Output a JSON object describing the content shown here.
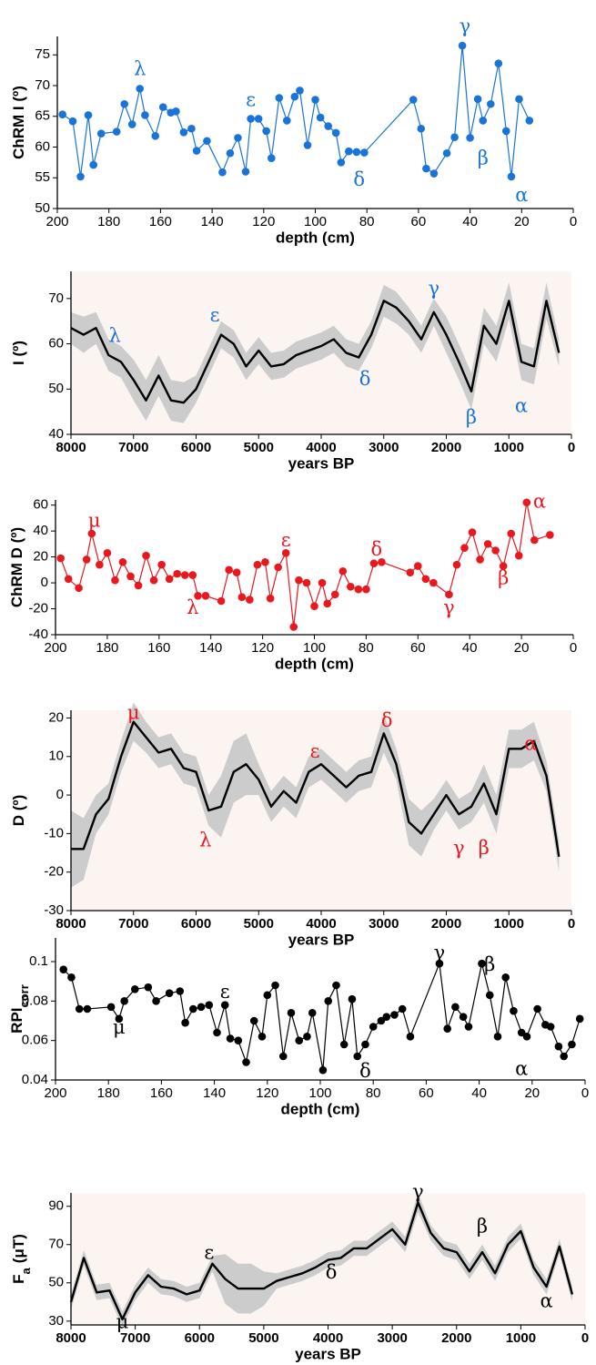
{
  "chart_data": [
    {
      "type": "line",
      "markers": true,
      "color": "#1a73d9",
      "annotation_color": "#1a73d9",
      "ylabel": [
        "ChRM  I (º)"
      ],
      "ylabel_sub": [
        false
      ],
      "xlabel": "depth (cm)",
      "xlim": [
        200,
        0
      ],
      "ylim": [
        50,
        78
      ],
      "xticks": [
        200,
        180,
        160,
        140,
        120,
        100,
        80,
        60,
        40,
        20,
        0
      ],
      "yticks": [
        50,
        55,
        60,
        65,
        70,
        75
      ],
      "x": [
        198,
        194,
        191,
        188,
        186,
        183,
        177,
        174,
        171,
        168,
        166,
        162,
        159,
        156,
        154,
        151,
        148,
        146,
        142,
        136,
        133,
        130,
        127,
        125,
        122,
        119,
        117,
        114,
        111,
        108,
        106,
        103,
        100,
        98,
        95,
        92,
        90,
        87,
        84,
        81,
        62,
        59,
        57,
        54,
        49,
        46,
        43,
        40,
        37,
        35,
        32,
        29,
        26,
        24,
        21,
        17
      ],
      "values": [
        65.3,
        64.2,
        55.2,
        65.2,
        57.1,
        62.2,
        62.5,
        67,
        63.7,
        69.5,
        65.2,
        61.8,
        66.5,
        65.6,
        65.8,
        62.4,
        63,
        59.4,
        61,
        55.9,
        59,
        61.5,
        56,
        64.6,
        64.6,
        62.6,
        58.2,
        68,
        64.3,
        68.2,
        69.2,
        60.3,
        67.7,
        64.8,
        63.4,
        62.3,
        57.5,
        59.3,
        59.2,
        59.1,
        67.7,
        63,
        56.5,
        55.7,
        59,
        61.6,
        76.5,
        61.5,
        67.8,
        64.3,
        67,
        73.6,
        62.6,
        55.2,
        67.8,
        64.3
      ],
      "annotations": [
        {
          "text": "λ",
          "x": 168,
          "y": 72.5
        },
        {
          "text": "ε",
          "x": 125,
          "y": 67.5
        },
        {
          "text": "δ",
          "x": 83,
          "y": 54.5
        },
        {
          "text": "γ",
          "x": 42,
          "y": 79.5
        },
        {
          "text": "β",
          "x": 35,
          "y": 58
        },
        {
          "text": "α",
          "x": 20,
          "y": 52
        }
      ]
    },
    {
      "type": "line",
      "markers": false,
      "color": "#000000",
      "band_color": "#cccccc",
      "background": "#fcf4f1",
      "annotation_color": "#1a73d9",
      "ylabel": [
        "I (º)"
      ],
      "ylabel_sub": [
        false
      ],
      "xlabel": "years BP",
      "xlim": [
        8000,
        0
      ],
      "ylim": [
        40,
        76
      ],
      "xticks": [
        8000,
        7000,
        6000,
        5000,
        4000,
        3000,
        2000,
        1000,
        0
      ],
      "yticks": [
        40,
        50,
        60,
        70
      ],
      "x": [
        8000,
        7800,
        7600,
        7400,
        7200,
        7000,
        6800,
        6600,
        6400,
        6200,
        6000,
        5800,
        5600,
        5400,
        5200,
        5000,
        4800,
        4600,
        4400,
        4200,
        4000,
        3800,
        3600,
        3400,
        3200,
        3000,
        2800,
        2600,
        2400,
        2200,
        2000,
        1800,
        1600,
        1400,
        1200,
        1000,
        800,
        600,
        400,
        200
      ],
      "values": [
        63.5,
        62,
        63.5,
        57.5,
        56,
        52,
        47.5,
        53,
        47.5,
        47,
        50,
        56,
        62,
        60,
        55,
        58.5,
        55,
        55.5,
        57.5,
        58.5,
        59.5,
        61,
        58,
        57,
        62,
        69.5,
        68,
        65,
        61,
        67,
        62,
        56,
        49.5,
        64,
        60,
        69.5,
        56,
        55,
        69.5,
        58
      ],
      "upper": [
        67,
        66,
        67,
        61,
        59.5,
        56.5,
        52,
        57.5,
        52,
        51.5,
        53,
        59,
        65,
        63,
        58,
        61.5,
        58,
        58.5,
        60.5,
        61.5,
        62.5,
        64,
        61,
        60,
        65,
        73,
        71.5,
        68,
        64,
        70,
        66,
        60,
        53.5,
        68,
        64,
        73.5,
        60,
        59,
        73.5,
        61
      ],
      "lower": [
        60,
        58,
        60,
        54,
        52.5,
        47.5,
        43,
        48.5,
        43,
        42.5,
        47,
        53,
        59,
        57,
        52,
        55.5,
        52,
        52.5,
        54.5,
        55.5,
        56.5,
        58,
        55,
        54,
        59,
        66,
        64.5,
        62,
        58,
        64,
        58,
        52,
        45.5,
        60,
        56,
        65.5,
        52,
        51,
        65.5,
        55
      ],
      "annotations": [
        {
          "text": "λ",
          "x": 7300,
          "y": 61.5
        },
        {
          "text": "ε",
          "x": 5700,
          "y": 66
        },
        {
          "text": "δ",
          "x": 3300,
          "y": 52
        },
        {
          "text": "γ",
          "x": 2200,
          "y": 72
        },
        {
          "text": "β",
          "x": 1600,
          "y": 43.5
        },
        {
          "text": "α",
          "x": 800,
          "y": 46
        }
      ]
    },
    {
      "type": "line",
      "markers": true,
      "color": "#e8181f",
      "annotation_color": "#e8181f",
      "ylabel": [
        "ChRM  D (º)"
      ],
      "ylabel_sub": [
        false
      ],
      "xlabel": "depth (cm)",
      "xlim": [
        200,
        0
      ],
      "ylim": [
        -40,
        64
      ],
      "xticks": [
        200,
        180,
        160,
        140,
        120,
        100,
        80,
        60,
        40,
        20,
        0
      ],
      "yticks": [
        -40,
        -20,
        0,
        20,
        40,
        60
      ],
      "x": [
        198,
        195,
        191,
        188,
        186,
        183,
        180,
        177,
        174,
        171,
        168,
        165,
        162,
        159,
        156,
        153,
        150,
        147,
        145,
        142,
        136,
        133,
        130,
        128,
        125,
        122,
        119,
        117,
        114,
        111,
        108,
        106,
        103,
        100,
        97,
        95,
        92,
        89,
        86,
        83,
        80,
        77,
        74,
        63,
        60,
        57,
        54,
        48,
        45,
        42,
        39,
        36,
        33,
        30,
        27,
        24,
        21,
        18,
        15,
        9
      ],
      "values": [
        19,
        3,
        -4,
        18,
        38,
        14,
        23,
        2,
        16,
        5,
        -2,
        21,
        2,
        14,
        3,
        7,
        6,
        6,
        -10,
        -10,
        -14,
        10,
        8,
        -11,
        -13,
        14,
        16,
        -12,
        12,
        23,
        -34,
        2,
        0,
        -18,
        0,
        -16,
        -9,
        9,
        -3,
        -5,
        -5,
        15,
        16,
        8,
        13,
        3,
        0,
        -9,
        14,
        27,
        39,
        18,
        30,
        25,
        13,
        38,
        21,
        62,
        33,
        37
      ],
      "annotations": [
        {
          "text": "μ",
          "x": 185,
          "y": 47
        },
        {
          "text": "λ",
          "x": 147,
          "y": -20
        },
        {
          "text": "ε",
          "x": 111,
          "y": 32
        },
        {
          "text": "δ",
          "x": 76,
          "y": 25
        },
        {
          "text": "γ",
          "x": 48,
          "y": -20
        },
        {
          "text": "β",
          "x": 27,
          "y": 3
        },
        {
          "text": "α",
          "x": 13,
          "y": 62
        }
      ]
    },
    {
      "type": "line",
      "markers": false,
      "color": "#000000",
      "band_color": "#cccccc",
      "background": "#fcf4f1",
      "annotation_color": "#e8181f",
      "ylabel": [
        "D (º)"
      ],
      "ylabel_sub": [
        false
      ],
      "xlabel": "years BP",
      "xlim": [
        8000,
        0
      ],
      "ylim": [
        -30,
        22
      ],
      "xticks": [
        8000,
        7000,
        6000,
        5000,
        4000,
        3000,
        2000,
        1000,
        0
      ],
      "yticks": [
        -30,
        -20,
        -10,
        0,
        10,
        20
      ],
      "x": [
        8000,
        7800,
        7600,
        7400,
        7200,
        7000,
        6800,
        6600,
        6400,
        6200,
        6000,
        5800,
        5600,
        5400,
        5200,
        5000,
        4800,
        4600,
        4400,
        4200,
        4000,
        3800,
        3600,
        3400,
        3200,
        3000,
        2800,
        2600,
        2400,
        2200,
        2000,
        1800,
        1600,
        1400,
        1200,
        1000,
        800,
        600,
        400,
        200
      ],
      "values": [
        -14,
        -14,
        -5,
        -1,
        10,
        19,
        15,
        11,
        12,
        7,
        6,
        -4,
        -3,
        6,
        8,
        4,
        -3,
        1,
        -2,
        6,
        8,
        5,
        2,
        5,
        6,
        16,
        8,
        -7,
        -10,
        -5,
        0,
        -5,
        -3,
        3,
        -5,
        12,
        12,
        14,
        5,
        -16
      ],
      "upper": [
        -4,
        -6,
        0,
        3,
        14,
        24,
        19,
        15,
        16,
        11,
        10,
        0,
        5,
        14,
        16,
        8,
        1,
        5,
        2,
        10,
        12,
        9,
        6,
        9,
        10,
        21,
        12,
        -1,
        -4,
        -1,
        4,
        -1,
        1,
        8,
        0,
        17,
        17,
        19,
        9,
        -12
      ],
      "lower": [
        -24,
        -22,
        -10,
        -5,
        6,
        14,
        11,
        7,
        8,
        3,
        2,
        -8,
        -11,
        -2,
        0,
        0,
        -7,
        -3,
        -6,
        2,
        4,
        1,
        -2,
        1,
        2,
        11,
        4,
        -13,
        -16,
        -9,
        -4,
        -9,
        -7,
        -2,
        -10,
        7,
        7,
        9,
        1,
        -20
      ],
      "annotations": [
        {
          "text": "μ",
          "x": 7000,
          "y": 21
        },
        {
          "text": "λ",
          "x": 5850,
          "y": -12
        },
        {
          "text": "ε",
          "x": 4100,
          "y": 11
        },
        {
          "text": "δ",
          "x": 2950,
          "y": 19
        },
        {
          "text": "γ",
          "x": 1800,
          "y": -14
        },
        {
          "text": "β",
          "x": 1400,
          "y": -14
        },
        {
          "text": "α",
          "x": 650,
          "y": 13
        }
      ]
    },
    {
      "type": "line",
      "markers": true,
      "color": "#000000",
      "annotation_color": "#000000",
      "ylabel": [
        "RPI",
        "corr"
      ],
      "ylabel_sub": [
        false,
        true
      ],
      "xlabel": "depth (cm)",
      "xlim": [
        200,
        0
      ],
      "ylim": [
        0.04,
        0.112
      ],
      "xticks": [
        200,
        180,
        160,
        140,
        120,
        100,
        80,
        60,
        40,
        20,
        0
      ],
      "yticks": [
        0.04,
        0.06,
        0.08,
        0.1
      ],
      "x": [
        197,
        194,
        191,
        188,
        179,
        176,
        174,
        170,
        165,
        162,
        157,
        153,
        151,
        148,
        145,
        142,
        139,
        136,
        134,
        131,
        128,
        125,
        122,
        120,
        117,
        114,
        111,
        108,
        105,
        103,
        99,
        97,
        94,
        91,
        88,
        86,
        83,
        80,
        77,
        75,
        72,
        69,
        66,
        55,
        52,
        49,
        46,
        44,
        39,
        36,
        33,
        30,
        27,
        24,
        22,
        18,
        15,
        13,
        10,
        8,
        5,
        2
      ],
      "values": [
        0.096,
        0.092,
        0.076,
        0.076,
        0.077,
        0.071,
        0.08,
        0.086,
        0.087,
        0.08,
        0.084,
        0.085,
        0.069,
        0.076,
        0.077,
        0.078,
        0.064,
        0.078,
        0.061,
        0.06,
        0.049,
        0.07,
        0.062,
        0.083,
        0.088,
        0.052,
        0.074,
        0.06,
        0.062,
        0.074,
        0.045,
        0.08,
        0.088,
        0.058,
        0.081,
        0.052,
        0.058,
        0.067,
        0.07,
        0.072,
        0.073,
        0.076,
        0.062,
        0.099,
        0.066,
        0.077,
        0.072,
        0.067,
        0.099,
        0.083,
        0.062,
        0.092,
        0.075,
        0.064,
        0.062,
        0.076,
        0.068,
        0.067,
        0.057,
        0.052,
        0.058,
        0.071
      ],
      "annotations": [
        {
          "text": "μ",
          "x": 176,
          "y": 0.066
        },
        {
          "text": "ε",
          "x": 136,
          "y": 0.084
        },
        {
          "text": "δ",
          "x": 83,
          "y": 0.044
        },
        {
          "text": "γ",
          "x": 55,
          "y": 0.104
        },
        {
          "text": "β",
          "x": 36,
          "y": 0.098
        },
        {
          "text": "α",
          "x": 24,
          "y": 0.045
        }
      ]
    },
    {
      "type": "line",
      "markers": false,
      "color": "#000000",
      "band_color": "#cccccc",
      "background": "#fcf4f1",
      "annotation_color": "#000000",
      "ylabel": [
        "F",
        "a",
        "(μT)"
      ],
      "ylabel_sub": [
        false,
        true,
        false
      ],
      "xlabel": "years BP",
      "xlim": [
        8000,
        0
      ],
      "ylim": [
        28,
        97
      ],
      "xticks": [
        8000,
        7000,
        6000,
        5000,
        4000,
        3000,
        2000,
        1000,
        0
      ],
      "yticks": [
        30,
        50,
        70,
        90
      ],
      "x": [
        8000,
        7800,
        7600,
        7400,
        7200,
        7000,
        6800,
        6600,
        6400,
        6200,
        6000,
        5800,
        5600,
        5400,
        5200,
        5000,
        4800,
        4600,
        4400,
        4200,
        4000,
        3800,
        3600,
        3400,
        3200,
        3000,
        2800,
        2600,
        2400,
        2200,
        2000,
        1800,
        1600,
        1400,
        1200,
        1000,
        800,
        600,
        400,
        200
      ],
      "values": [
        40,
        63,
        45,
        46,
        31,
        45,
        54,
        48,
        47,
        44,
        46,
        60,
        52,
        47,
        47,
        47,
        51,
        53,
        55,
        58,
        62,
        63,
        68,
        68,
        73,
        78,
        70,
        92,
        76,
        68,
        66,
        56,
        66,
        55,
        70,
        77,
        58,
        48,
        69,
        44
      ],
      "upper": [
        44,
        67,
        49,
        50,
        35,
        49,
        58,
        52,
        51,
        48,
        50,
        64,
        65,
        60,
        60,
        56,
        55,
        57,
        59,
        62,
        66,
        67,
        72,
        72,
        77,
        82,
        74,
        97,
        80,
        72,
        70,
        60,
        70,
        59,
        74,
        81,
        62,
        52,
        73,
        48
      ],
      "lower": [
        36,
        59,
        41,
        42,
        27,
        41,
        50,
        44,
        43,
        40,
        42,
        56,
        39,
        34,
        34,
        38,
        47,
        49,
        51,
        54,
        58,
        59,
        64,
        64,
        69,
        74,
        66,
        87,
        72,
        64,
        62,
        52,
        62,
        51,
        66,
        73,
        54,
        44,
        65,
        40
      ],
      "annotations": [
        {
          "text": "μ",
          "x": 7200,
          "y": 29
        },
        {
          "text": "ε",
          "x": 5850,
          "y": 65
        },
        {
          "text": "δ",
          "x": 3950,
          "y": 55
        },
        {
          "text": "γ",
          "x": 2600,
          "y": 97
        },
        {
          "text": "β",
          "x": 1600,
          "y": 79
        },
        {
          "text": "α",
          "x": 600,
          "y": 40
        }
      ]
    }
  ]
}
